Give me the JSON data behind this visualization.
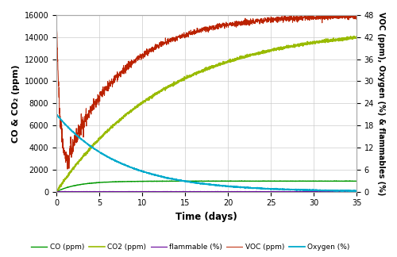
{
  "xlabel": "Time (days)",
  "ylabel_left": "CO & CO₂ (ppm)",
  "ylabel_right": "VOC (ppm), Oxygen (%) & flammables (%)",
  "xlim": [
    0,
    35
  ],
  "ylim_left": [
    0,
    16000
  ],
  "ylim_right": [
    0,
    48
  ],
  "xticks": [
    0,
    5,
    10,
    15,
    20,
    25,
    30,
    35
  ],
  "yticks_left": [
    0,
    2000,
    4000,
    6000,
    8000,
    10000,
    12000,
    14000,
    16000
  ],
  "yticks_right": [
    0,
    6,
    12,
    18,
    24,
    30,
    36,
    42,
    48
  ],
  "colors": {
    "CO": "#009900",
    "CO2": "#99bb00",
    "flammable": "#660099",
    "VOC": "#bb2200",
    "Oxygen": "#00aacc"
  },
  "legend_labels": [
    "CO (ppm)",
    "CO2 (ppm)",
    "flammable (%)",
    "VOC (ppm)",
    "Oxygen (%)"
  ],
  "background": "#ffffff",
  "grid_color": "#cccccc",
  "figsize": [
    5.0,
    3.24
  ],
  "dpi": 100
}
